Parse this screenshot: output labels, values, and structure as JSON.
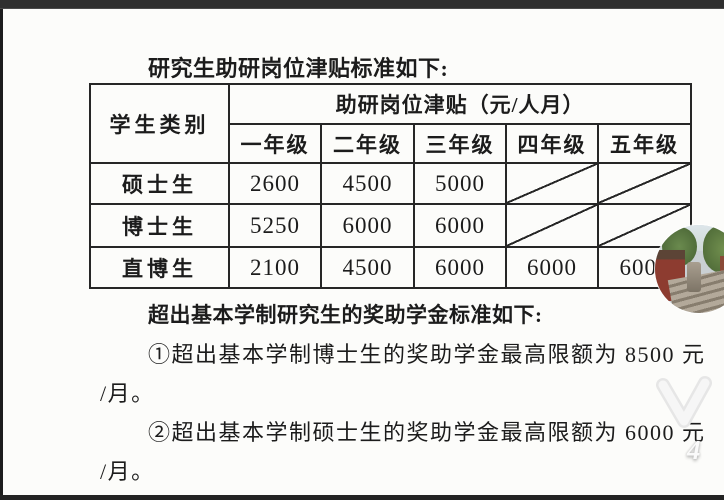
{
  "colors": {
    "top_bar": "#2f2f2f",
    "bottom_bar": "#232323",
    "page_bg": "#fcfcfa",
    "table_border": "#262626",
    "text": "#1c1c1c"
  },
  "title": "研究生助研岗位津贴标准如下:",
  "table": {
    "corner_header": "学生类别",
    "group_header": "助研岗位津贴（元/人月）",
    "grade_headers": [
      "一年级",
      "二年级",
      "三年级",
      "四年级",
      "五年级"
    ],
    "rows": [
      {
        "category": "硕士生",
        "values": [
          "2600",
          "4500",
          "5000",
          null,
          null
        ]
      },
      {
        "category": "博士生",
        "values": [
          "5250",
          "6000",
          "6000",
          null,
          null
        ]
      },
      {
        "category": "直博生",
        "values": [
          "2100",
          "4500",
          "6000",
          "6000",
          "6000"
        ]
      }
    ]
  },
  "body": {
    "heading": "超出基本学制研究生的奖助学金标准如下:",
    "lines": [
      {
        "text": "①超出基本学制博士生的奖助学金最高限额为 8500 元",
        "indent": true
      },
      {
        "text": "/月。",
        "indent": false
      },
      {
        "text": "②超出基本学制硕士生的奖助学金最高限额为 6000 元",
        "indent": true
      },
      {
        "text": "/月。",
        "indent": false
      }
    ]
  },
  "overlay": {
    "page_badge": "4",
    "chevron_icon": "chevron-down"
  }
}
